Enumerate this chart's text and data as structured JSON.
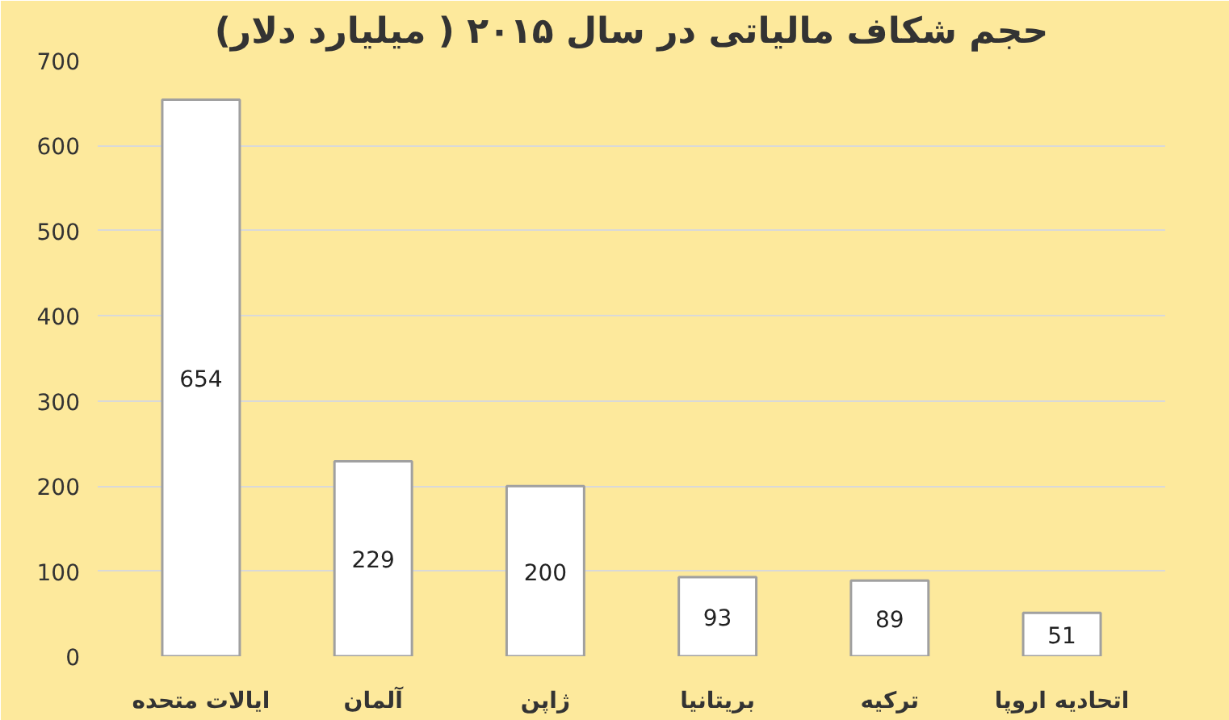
{
  "chart_data": {
    "type": "bar",
    "title": "حجم شکاف مالیاتی در سال ۲۰۱۵ ( میلیارد دلار)",
    "categories": [
      "ایالات متحده",
      "آلمان",
      "ژاپن",
      "بریتانیا",
      "ترکیه",
      "اتحادیه اروپا"
    ],
    "values": [
      654,
      229,
      200,
      93,
      89,
      51
    ],
    "color": "#ffffff",
    "ylim": [
      0,
      700
    ],
    "yticks": [
      0,
      100,
      200,
      300,
      400,
      500,
      600,
      700
    ],
    "grid": "y",
    "data_labels": true
  }
}
